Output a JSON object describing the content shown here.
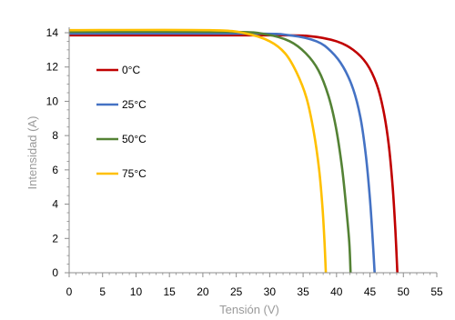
{
  "chart_data": {
    "type": "line",
    "title": "",
    "xlabel": "Tensión (V)",
    "ylabel": "Intensidad (A)",
    "xlim": [
      0,
      55
    ],
    "ylim": [
      0,
      14
    ],
    "x_ticks": [
      "0",
      "5",
      "10",
      "15",
      "20",
      "25",
      "30",
      "35",
      "40",
      "45",
      "50",
      "55"
    ],
    "y_ticks": [
      "0",
      "2",
      "4",
      "6",
      "8",
      "10",
      "12",
      "14"
    ],
    "grid": false,
    "legend_position": "left",
    "series": [
      {
        "name": "0°C",
        "color": "#c00000",
        "points": [
          [
            0,
            13.85
          ],
          [
            30,
            13.85
          ],
          [
            36,
            13.8
          ],
          [
            40,
            13.5
          ],
          [
            42.5,
            13.0
          ],
          [
            44.5,
            12.2
          ],
          [
            46,
            11.0
          ],
          [
            47,
            9.5
          ],
          [
            47.8,
            7.5
          ],
          [
            48.4,
            5.0
          ],
          [
            48.8,
            2.5
          ],
          [
            49.1,
            0
          ]
        ]
      },
      {
        "name": "25°C",
        "color": "#4472c4",
        "points": [
          [
            0,
            13.95
          ],
          [
            27,
            13.95
          ],
          [
            33,
            13.85
          ],
          [
            37,
            13.5
          ],
          [
            39.2,
            12.9
          ],
          [
            41.0,
            12.0
          ],
          [
            42.5,
            10.7
          ],
          [
            43.6,
            9.0
          ],
          [
            44.4,
            6.8
          ],
          [
            45.0,
            4.3
          ],
          [
            45.4,
            2.0
          ],
          [
            45.7,
            0
          ]
        ]
      },
      {
        "name": "50°C",
        "color": "#548235",
        "points": [
          [
            0,
            14.05
          ],
          [
            24,
            14.05
          ],
          [
            29.5,
            13.9
          ],
          [
            33,
            13.5
          ],
          [
            35.4,
            12.8
          ],
          [
            37.3,
            11.8
          ],
          [
            38.8,
            10.3
          ],
          [
            39.9,
            8.5
          ],
          [
            40.8,
            6.2
          ],
          [
            41.4,
            4.0
          ],
          [
            41.9,
            1.8
          ],
          [
            42.1,
            0
          ]
        ]
      },
      {
        "name": "75°C",
        "color": "#ffc000",
        "points": [
          [
            0,
            14.15
          ],
          [
            21,
            14.15
          ],
          [
            26.5,
            13.95
          ],
          [
            30,
            13.5
          ],
          [
            32.3,
            12.8
          ],
          [
            34.0,
            11.7
          ],
          [
            35.5,
            10.2
          ],
          [
            36.6,
            8.2
          ],
          [
            37.4,
            6.0
          ],
          [
            37.9,
            3.8
          ],
          [
            38.2,
            1.8
          ],
          [
            38.4,
            0
          ]
        ]
      }
    ]
  }
}
